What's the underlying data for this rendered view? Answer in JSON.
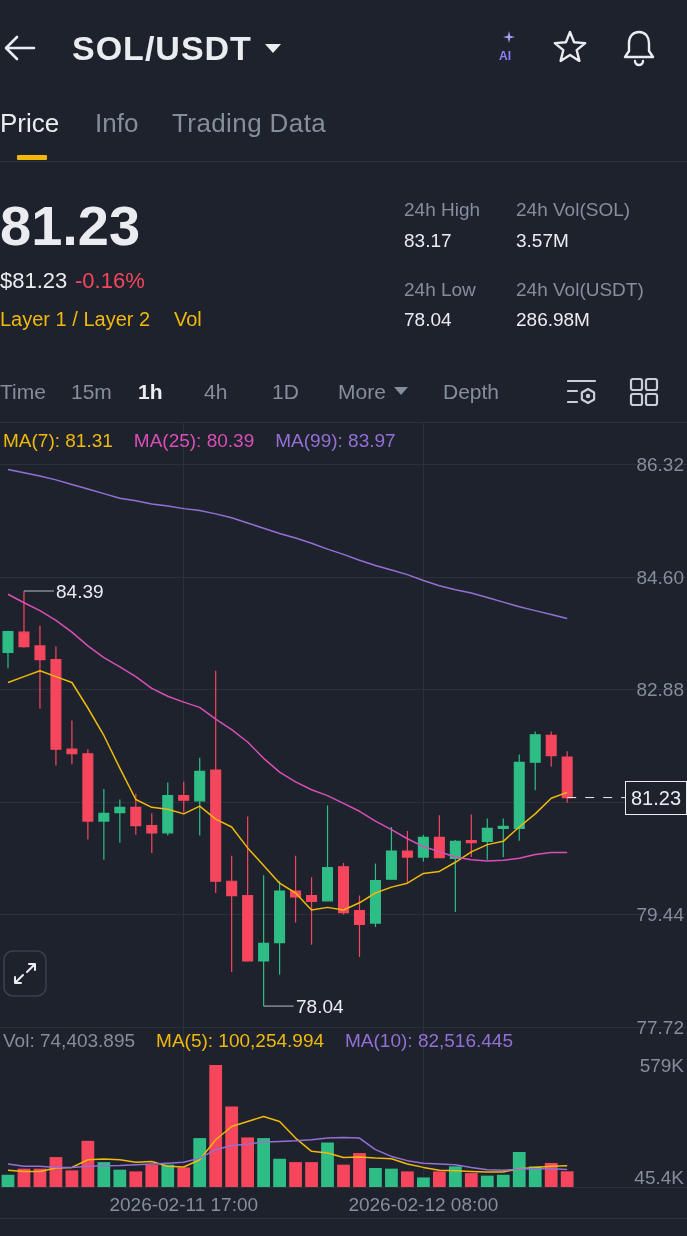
{
  "chart_data": [
    {
      "type": "other",
      "title": "SOL/USDT",
      "annotations": [
        "AI",
        "Price",
        "Info",
        "Trading Data",
        "81.23",
        "$81.23",
        "-0.16%",
        "Layer 1 / Layer 2",
        "Vol",
        "24h High",
        "24h Vol(SOL)",
        "83.17",
        "3.57M",
        "24h Low",
        "24h Vol(USDT)",
        "78.04",
        "286.98M",
        "Time",
        "15m",
        "1h",
        "4h",
        "1D",
        "More",
        "Depth"
      ]
    },
    {
      "type": "candlestick",
      "x": [
        "2026-02-11T06:00",
        "2026-02-11T07:00",
        "2026-02-11T08:00",
        "2026-02-11T09:00",
        "2026-02-11T10:00",
        "2026-02-11T11:00",
        "2026-02-11T12:00",
        "2026-02-11T13:00",
        "2026-02-11T14:00",
        "2026-02-11T15:00",
        "2026-02-11T16:00",
        "2026-02-11T17:00",
        "2026-02-11T18:00",
        "2026-02-11T19:00",
        "2026-02-11T20:00",
        "2026-02-11T21:00",
        "2026-02-11T22:00",
        "2026-02-11T23:00",
        "2026-02-12T00:00",
        "2026-02-12T01:00",
        "2026-02-12T02:00",
        "2026-02-12T03:00",
        "2026-02-12T04:00",
        "2026-02-12T05:00",
        "2026-02-12T06:00",
        "2026-02-12T07:00",
        "2026-02-12T08:00",
        "2026-02-12T09:00",
        "2026-02-12T10:00",
        "2026-02-12T11:00",
        "2026-02-12T12:00",
        "2026-02-12T13:00",
        "2026-02-12T14:00",
        "2026-02-12T15:00",
        "2026-02-12T16:00",
        "2026-02-12T17:00"
      ],
      "ohlc": [
        [
          83.45,
          83.78,
          83.21,
          83.77
        ],
        [
          83.76,
          84.39,
          83.52,
          83.54
        ],
        [
          83.55,
          83.86,
          82.59,
          83.34
        ],
        [
          83.34,
          83.54,
          81.72,
          81.97
        ],
        [
          81.97,
          82.41,
          81.74,
          81.9
        ],
        [
          81.9,
          81.97,
          80.59,
          80.87
        ],
        [
          80.87,
          81.36,
          80.28,
          80.99
        ],
        [
          81.0,
          81.2,
          80.54,
          81.08
        ],
        [
          81.08,
          81.29,
          80.66,
          80.8
        ],
        [
          80.8,
          80.99,
          80.38,
          80.69
        ],
        [
          80.69,
          81.46,
          80.65,
          81.26
        ],
        [
          81.26,
          81.47,
          81.0,
          81.19
        ],
        [
          81.18,
          81.84,
          80.65,
          81.63
        ],
        [
          81.65,
          83.17,
          79.77,
          79.95
        ],
        [
          79.95,
          80.34,
          78.56,
          79.73
        ],
        [
          79.73,
          80.94,
          78.72,
          78.73
        ],
        [
          78.73,
          80.04,
          78.04,
          79.0
        ],
        [
          79.01,
          79.95,
          78.52,
          79.8
        ],
        [
          79.8,
          80.34,
          79.32,
          79.71
        ],
        [
          79.73,
          80.01,
          78.98,
          79.64
        ],
        [
          79.65,
          81.11,
          79.65,
          80.16
        ],
        [
          80.17,
          80.23,
          79.44,
          79.47
        ],
        [
          79.5,
          79.73,
          78.79,
          79.29
        ],
        [
          79.31,
          80.22,
          79.25,
          79.96
        ],
        [
          79.98,
          80.78,
          79.98,
          80.41
        ],
        [
          80.41,
          80.72,
          79.93,
          80.32
        ],
        [
          80.32,
          80.66,
          80.25,
          80.62
        ],
        [
          80.62,
          80.96,
          80.3,
          80.31
        ],
        [
          80.3,
          80.58,
          79.48,
          80.56
        ],
        [
          80.57,
          80.97,
          80.32,
          80.54
        ],
        [
          80.56,
          80.91,
          80.28,
          80.76
        ],
        [
          80.76,
          80.91,
          80.32,
          80.79
        ],
        [
          80.76,
          81.89,
          80.57,
          81.77
        ],
        [
          81.77,
          82.24,
          81.34,
          82.19
        ],
        [
          82.18,
          82.24,
          81.7,
          81.87
        ],
        [
          81.85,
          81.94,
          81.15,
          81.23
        ]
      ],
      "colors": [
        "#2ebd85",
        "#f6465d",
        "#f6465d",
        "#f6465d",
        "#f6465d",
        "#f6465d",
        "#2ebd85",
        "#2ebd85",
        "#f6465d",
        "#f6465d",
        "#2ebd85",
        "#f6465d",
        "#2ebd85",
        "#f6465d",
        "#f6465d",
        "#f6465d",
        "#2ebd85",
        "#2ebd85",
        "#f6465d",
        "#f6465d",
        "#2ebd85",
        "#f6465d",
        "#f6465d",
        "#2ebd85",
        "#2ebd85",
        "#f6465d",
        "#2ebd85",
        "#f6465d",
        "#2ebd85",
        "#f6465d",
        "#2ebd85",
        "#2ebd85",
        "#2ebd85",
        "#2ebd85",
        "#f6465d",
        "#f6465d"
      ],
      "series": [
        {
          "name": "MA(7): 81.31",
          "type": "line",
          "color": "#f0b90b",
          "values": [
            82.99,
            83.08,
            83.17,
            83.08,
            82.99,
            82.6,
            82.18,
            81.68,
            81.2,
            81.08,
            81.05,
            80.98,
            81.1,
            80.9,
            80.78,
            80.46,
            80.19,
            79.92,
            79.77,
            79.51,
            79.55,
            79.51,
            79.62,
            79.77,
            79.86,
            79.92,
            80.07,
            80.1,
            80.24,
            80.4,
            80.51,
            80.56,
            80.78,
            80.98,
            81.22,
            81.31
          ]
        },
        {
          "name": "MA(25): 80.39",
          "type": "line",
          "color": "#d84fb8",
          "values": [
            84.34,
            84.21,
            84.09,
            83.94,
            83.76,
            83.55,
            83.37,
            83.23,
            83.08,
            82.9,
            82.78,
            82.69,
            82.61,
            82.43,
            82.27,
            82.08,
            81.83,
            81.62,
            81.47,
            81.35,
            81.26,
            81.14,
            81.02,
            80.87,
            80.74,
            80.6,
            80.48,
            80.4,
            80.32,
            80.28,
            80.26,
            80.27,
            80.3,
            80.36,
            80.39,
            80.39
          ]
        },
        {
          "name": "MA(99): 83.97",
          "type": "line",
          "color": "#9470d6",
          "values": [
            86.25,
            86.2,
            86.15,
            86.09,
            86.02,
            85.95,
            85.88,
            85.81,
            85.77,
            85.72,
            85.69,
            85.65,
            85.62,
            85.57,
            85.51,
            85.43,
            85.35,
            85.27,
            85.2,
            85.12,
            85.03,
            84.95,
            84.86,
            84.78,
            84.71,
            84.64,
            84.55,
            84.47,
            84.41,
            84.36,
            84.29,
            84.22,
            84.15,
            84.09,
            84.03,
            83.97
          ]
        }
      ],
      "xlim": [
        "2026-02-11T05:30",
        "2026-02-13T00:30"
      ],
      "xticks": [
        {
          "value": "2026-02-11T17:00",
          "label": null
        },
        {
          "value": "2026-02-12T08:00",
          "label": null
        }
      ],
      "ylim": [
        77.72,
        86.96
      ],
      "yticks": [
        77.72,
        79.44,
        {
          "value": 81.16,
          "label": null
        },
        82.88,
        {
          "value": 84.6,
          "label": "84.60"
        },
        86.32
      ],
      "tick_labels": "y",
      "grid": true,
      "legend": "top left",
      "annotations": [
        {
          "text": "84.39",
          "x": "2026-02-11T07:00",
          "y": 84.39
        },
        {
          "text": "78.04",
          "x": "2026-02-11T22:00",
          "y": 78.04
        }
      ],
      "ref_lines": [
        {
          "axis": "y",
          "value": 81.23,
          "label": "81.23",
          "line_style": "dashed",
          "color": "#eaecef"
        }
      ]
    },
    {
      "type": "bar",
      "x": [
        "2026-02-11T06:00",
        "2026-02-11T07:00",
        "2026-02-11T08:00",
        "2026-02-11T09:00",
        "2026-02-11T10:00",
        "2026-02-11T11:00",
        "2026-02-11T12:00",
        "2026-02-11T13:00",
        "2026-02-11T14:00",
        "2026-02-11T15:00",
        "2026-02-11T16:00",
        "2026-02-11T17:00",
        "2026-02-11T18:00",
        "2026-02-11T19:00",
        "2026-02-11T20:00",
        "2026-02-11T21:00",
        "2026-02-11T22:00",
        "2026-02-11T23:00",
        "2026-02-12T00:00",
        "2026-02-12T01:00",
        "2026-02-12T02:00",
        "2026-02-12T03:00",
        "2026-02-12T04:00",
        "2026-02-12T05:00",
        "2026-02-12T06:00",
        "2026-02-12T07:00",
        "2026-02-12T08:00",
        "2026-02-12T09:00",
        "2026-02-12T10:00",
        "2026-02-12T11:00",
        "2026-02-12T12:00",
        "2026-02-12T13:00",
        "2026-02-12T14:00",
        "2026-02-12T15:00",
        "2026-02-12T16:00",
        "2026-02-12T17:00"
      ],
      "series": [
        {
          "type": "bar",
          "colors": [
            "#2ebd85",
            "#f6465d",
            "#f6465d",
            "#f6465d",
            "#f6465d",
            "#f6465d",
            "#2ebd85",
            "#2ebd85",
            "#f6465d",
            "#f6465d",
            "#2ebd85",
            "#f6465d",
            "#2ebd85",
            "#f6465d",
            "#f6465d",
            "#f6465d",
            "#2ebd85",
            "#2ebd85",
            "#f6465d",
            "#f6465d",
            "#2ebd85",
            "#f6465d",
            "#f6465d",
            "#2ebd85",
            "#2ebd85",
            "#f6465d",
            "#2ebd85",
            "#f6465d",
            "#2ebd85",
            "#f6465d",
            "#2ebd85",
            "#2ebd85",
            "#2ebd85",
            "#2ebd85",
            "#f6465d",
            "#f6465d"
          ],
          "values": [
            58000,
            87000,
            87000,
            142000,
            79000,
            219000,
            118000,
            82000,
            74000,
            106000,
            106000,
            93000,
            232000,
            579000,
            382000,
            235000,
            232000,
            134000,
            118000,
            118000,
            211000,
            106000,
            161000,
            90000,
            87000,
            74000,
            45400,
            74000,
            98000,
            66000,
            54000,
            58000,
            166000,
            98000,
            114000,
            74403.895
          ]
        },
        {
          "name": "MA(5): 100,254.994",
          "type": "line",
          "color": "#f0b90b",
          "values": [
            79000,
            74000,
            74000,
            90000,
            93000,
            129000,
            133000,
            129000,
            117000,
            121000,
            98000,
            95000,
            129000,
            224000,
            287000,
            311000,
            334000,
            311000,
            232000,
            169000,
            161000,
            140000,
            142000,
            137000,
            134000,
            109000,
            93000,
            79000,
            77000,
            74000,
            71000,
            71000,
            87000,
            93000,
            98000,
            100254.994
          ]
        },
        {
          "name": "MA(10): 82,516.445",
          "type": "line",
          "color": "#9470d6",
          "values": [
            109000,
            98000,
            98000,
            93000,
            93000,
            98000,
            101000,
            102000,
            106000,
            109000,
            113000,
            117000,
            137000,
            177000,
            197000,
            203000,
            213000,
            216000,
            219000,
            224000,
            232000,
            235000,
            232000,
            177000,
            145000,
            125000,
            113000,
            109000,
            106000,
            93000,
            82000,
            79000,
            85000,
            87000,
            87000,
            82516.445
          ]
        }
      ],
      "xlim": [
        "2026-02-11T05:30",
        "2026-02-13T00:30"
      ],
      "xticks": [
        {
          "value": "2026-02-11T17:00",
          "label": "2026-02-11 17:00"
        },
        {
          "value": "2026-02-12T08:00",
          "label": "2026-02-12 08:00"
        }
      ],
      "ylim": [
        0,
        754000
      ],
      "yticks": [
        {
          "value": 45400,
          "label": "45.4K"
        },
        {
          "value": 579000,
          "label": "579K"
        }
      ],
      "grid": "x",
      "legend": "top left",
      "annotations": [
        "Vol: 74,403.895"
      ]
    }
  ]
}
